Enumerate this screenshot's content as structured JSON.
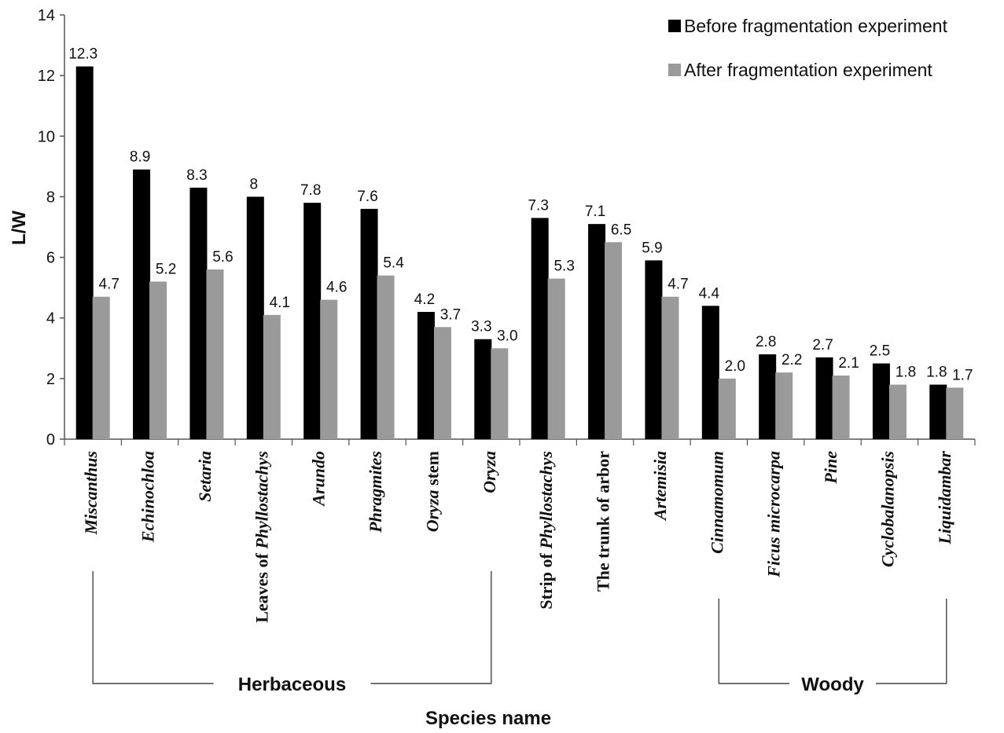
{
  "chart_data": {
    "type": "bar",
    "title": "",
    "xlabel": "Species name",
    "ylabel": "L/W",
    "ylim": [
      0,
      14
    ],
    "yticks": [
      0,
      2,
      4,
      6,
      8,
      10,
      12,
      14
    ],
    "grid": false,
    "legend_position": "top-right",
    "categories": [
      {
        "parts": [
          {
            "t": "Miscanthus",
            "i": true
          }
        ]
      },
      {
        "parts": [
          {
            "t": "Echinochloa",
            "i": true
          }
        ]
      },
      {
        "parts": [
          {
            "t": "Setaria",
            "i": true
          }
        ]
      },
      {
        "parts": [
          {
            "t": "Leaves of ",
            "i": false
          },
          {
            "t": "Phyllostachys",
            "i": true
          }
        ]
      },
      {
        "parts": [
          {
            "t": "Arundo",
            "i": true
          }
        ]
      },
      {
        "parts": [
          {
            "t": "Phragmites",
            "i": true
          }
        ]
      },
      {
        "parts": [
          {
            "t": "Oryza",
            "i": true
          },
          {
            "t": " stem",
            "i": false
          }
        ]
      },
      {
        "parts": [
          {
            "t": "Oryza",
            "i": true
          }
        ]
      },
      {
        "parts": [
          {
            "t": "Strip of ",
            "i": false
          },
          {
            "t": "Phyllostachys",
            "i": true
          }
        ]
      },
      {
        "parts": [
          {
            "t": "The trunk of arbor",
            "i": false
          }
        ]
      },
      {
        "parts": [
          {
            "t": "Artemisia",
            "i": true
          }
        ]
      },
      {
        "parts": [
          {
            "t": "Cinnamomum",
            "i": true
          }
        ]
      },
      {
        "parts": [
          {
            "t": "Ficus microcarpa",
            "i": true
          }
        ]
      },
      {
        "parts": [
          {
            "t": "Pine",
            "i": true
          }
        ]
      },
      {
        "parts": [
          {
            "t": "Cyclobalanopsis",
            "i": true
          }
        ]
      },
      {
        "parts": [
          {
            "t": "Liquidambar",
            "i": true
          }
        ]
      }
    ],
    "series": [
      {
        "name": "Before fragmentation experiment",
        "color": "#000000",
        "values": [
          12.3,
          8.9,
          8.3,
          8,
          7.8,
          7.6,
          4.2,
          3.3,
          7.3,
          7.1,
          5.9,
          4.4,
          2.8,
          2.7,
          2.5,
          1.8
        ],
        "labels": [
          "12.3",
          "8.9",
          "8.3",
          "8",
          "7.8",
          "7.6",
          "4.2",
          "3.3",
          "7.3",
          "7.1",
          "5.9",
          "4.4",
          "2.8",
          "2.7",
          "2.5",
          "1.8"
        ]
      },
      {
        "name": "After fragmentation experiment",
        "color": "#9a9a9a",
        "values": [
          4.7,
          5.2,
          5.6,
          4.1,
          4.6,
          5.4,
          3.7,
          3.0,
          5.3,
          6.5,
          4.7,
          2.0,
          2.2,
          2.1,
          1.8,
          1.7
        ],
        "labels": [
          "4.7",
          "5.2",
          "5.6",
          "4.1",
          "4.6",
          "5.4",
          "3.7",
          "3.0",
          "5.3",
          "6.5",
          "4.7",
          "2.0",
          "2.2",
          "2.1",
          "1.8",
          "1.7"
        ]
      }
    ],
    "groups": [
      {
        "label": "Herbaceous",
        "from_category": 0,
        "to_category": 7
      },
      {
        "label": "Woody",
        "from_category": 11,
        "to_category": 15
      }
    ]
  }
}
